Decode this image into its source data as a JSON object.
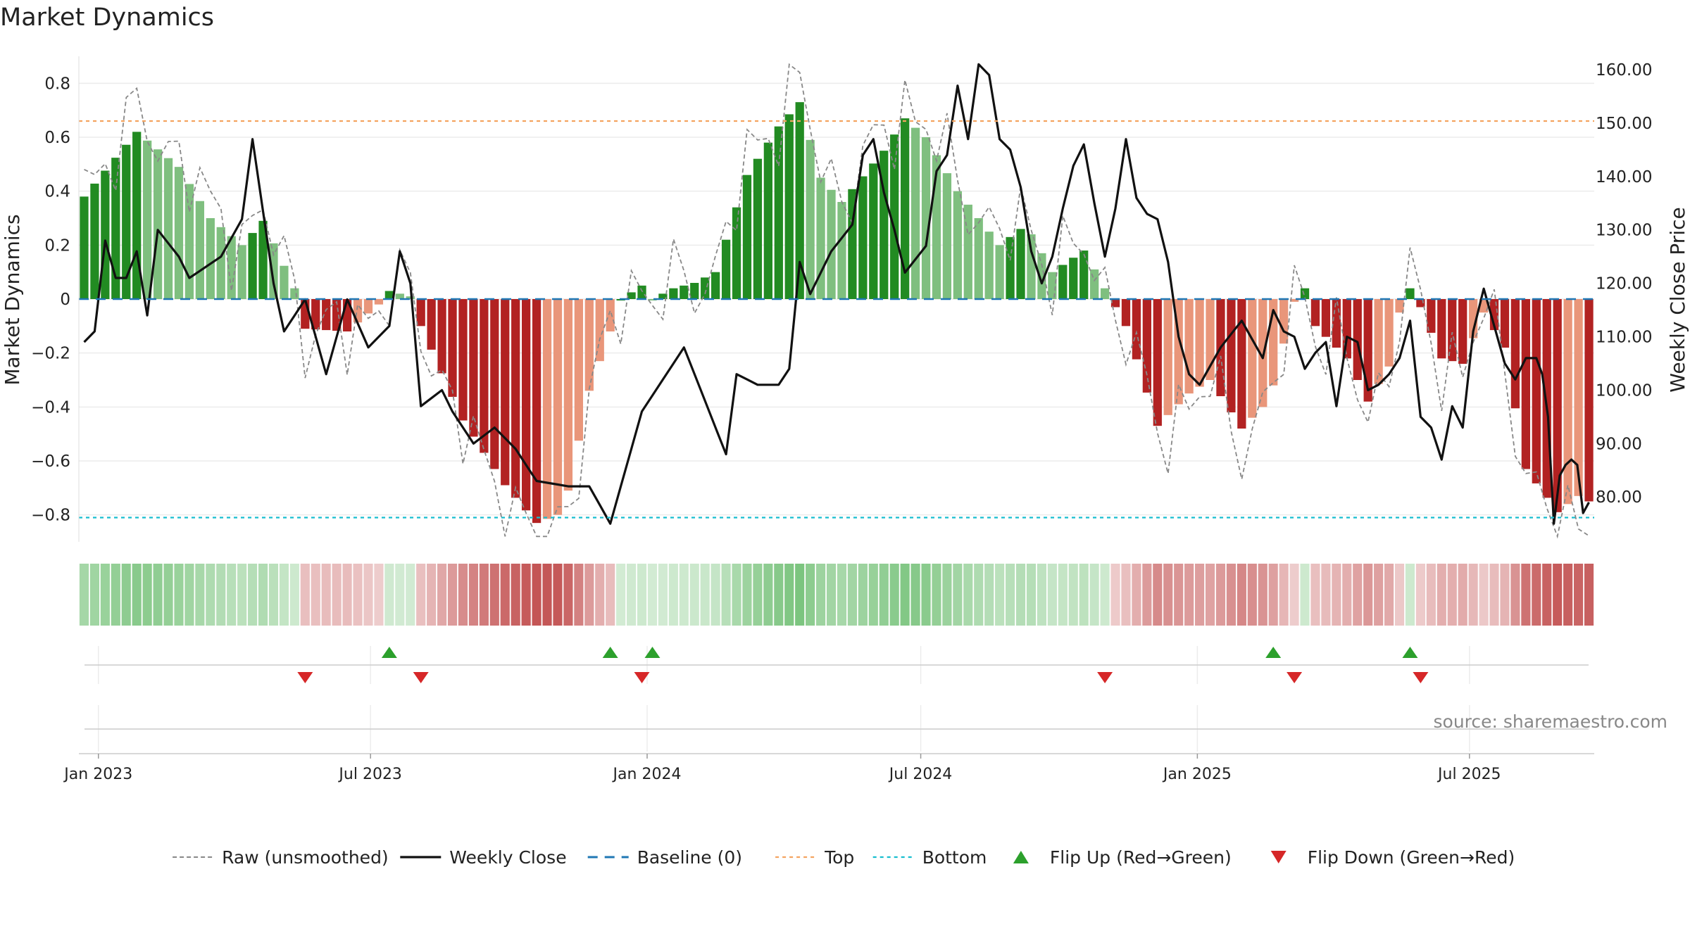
{
  "chart_data": {
    "type": "bar",
    "title": "Market Dynamics",
    "ylabel": "Market Dynamics",
    "y2label": "Weekly Close Price",
    "ylim": [
      -0.9,
      0.9
    ],
    "y2lim": [
      71.6,
      162.5
    ],
    "top_level": 0.66,
    "bottom_level": -0.81,
    "baseline_level": 0,
    "yticks": [
      0.8,
      0.6,
      0.4,
      0.2,
      0,
      -0.2,
      -0.4,
      -0.6,
      -0.8
    ],
    "yticklabels": [
      "0.8",
      "0.6",
      "0.4",
      "0.2",
      "0",
      "−0.2",
      "−0.4",
      "−0.6",
      "−0.8"
    ],
    "y2ticks": [
      160,
      150,
      140,
      130,
      120,
      110,
      100,
      90,
      80
    ],
    "y2ticklabels": [
      "160.00",
      "150.00",
      "140.00",
      "130.00",
      "120.00",
      "110.00",
      "100.00",
      "90.00",
      "80.00"
    ],
    "xticks": [
      "2023-01-01",
      "2023-07-01",
      "2024-01-01",
      "2024-07-01",
      "2025-01-01",
      "2025-07-01"
    ],
    "xticklabels": [
      "Jan 2023",
      "Jul 2023",
      "Jan 2024",
      "Jul 2024",
      "Jan 2025",
      "Jul 2025"
    ],
    "start_date": "2022-12-19",
    "weeks": 144,
    "legend_position": "bottom",
    "grid": true,
    "source": "source: sharemaestro.com",
    "dynamics_knots": [
      [
        0,
        0.38
      ],
      [
        5,
        0.62
      ],
      [
        9,
        0.49
      ],
      [
        12,
        0.3
      ],
      [
        15,
        0.2
      ],
      [
        17,
        0.29
      ],
      [
        20,
        0.04
      ],
      [
        21,
        -0.11
      ],
      [
        25,
        -0.12
      ],
      [
        28,
        -0.02
      ],
      [
        29,
        0.03
      ],
      [
        31,
        0.01
      ],
      [
        32,
        -0.1
      ],
      [
        36,
        -0.45
      ],
      [
        40,
        -0.69
      ],
      [
        43,
        -0.83
      ],
      [
        45,
        -0.8
      ],
      [
        46,
        -0.71
      ],
      [
        48,
        -0.34
      ],
      [
        50,
        -0.12
      ],
      [
        51,
        0.0
      ],
      [
        53,
        0.05
      ],
      [
        54,
        0.0
      ],
      [
        56,
        0.04
      ],
      [
        58,
        0.06
      ],
      [
        60,
        0.1
      ],
      [
        63,
        0.46
      ],
      [
        66,
        0.64
      ],
      [
        68,
        0.73
      ],
      [
        70,
        0.45
      ],
      [
        72,
        0.36
      ],
      [
        76,
        0.55
      ],
      [
        78,
        0.67
      ],
      [
        80,
        0.6
      ],
      [
        83,
        0.4
      ],
      [
        87,
        0.2
      ],
      [
        89,
        0.26
      ],
      [
        90,
        0.24
      ],
      [
        92,
        0.1
      ],
      [
        95,
        0.18
      ],
      [
        97,
        0.04
      ],
      [
        99,
        -0.1
      ],
      [
        102,
        -0.47
      ],
      [
        105,
        -0.35
      ],
      [
        107,
        -0.3
      ],
      [
        110,
        -0.48
      ],
      [
        112,
        -0.4
      ],
      [
        113,
        -0.32
      ],
      [
        115,
        -0.01
      ],
      [
        116,
        0.04
      ],
      [
        117,
        -0.1
      ],
      [
        120,
        -0.22
      ],
      [
        122,
        -0.38
      ],
      [
        124,
        -0.25
      ],
      [
        125,
        -0.05
      ],
      [
        126,
        0.04
      ],
      [
        127,
        -0.03
      ],
      [
        129,
        -0.22
      ],
      [
        131,
        -0.24
      ],
      [
        133,
        -0.05
      ],
      [
        135,
        -0.18
      ],
      [
        137,
        -0.63
      ],
      [
        140,
        -0.79
      ],
      [
        142,
        -0.73
      ],
      [
        143,
        -0.75
      ]
    ],
    "close_knots": [
      [
        0,
        109
      ],
      [
        1,
        111
      ],
      [
        2,
        128
      ],
      [
        3,
        121
      ],
      [
        4,
        121
      ],
      [
        5,
        126
      ],
      [
        6,
        114
      ],
      [
        7,
        130
      ],
      [
        9,
        125
      ],
      [
        10,
        121
      ],
      [
        13,
        125
      ],
      [
        15,
        132
      ],
      [
        16,
        147
      ],
      [
        18,
        120
      ],
      [
        19,
        111
      ],
      [
        21,
        117
      ],
      [
        23,
        103
      ],
      [
        25,
        117
      ],
      [
        27,
        108
      ],
      [
        29,
        112
      ],
      [
        30,
        126
      ],
      [
        31,
        120
      ],
      [
        32,
        97
      ],
      [
        34,
        100
      ],
      [
        35,
        96
      ],
      [
        37,
        90
      ],
      [
        39,
        93
      ],
      [
        41,
        89
      ],
      [
        43,
        83
      ],
      [
        46,
        82
      ],
      [
        48,
        82
      ],
      [
        50,
        75
      ],
      [
        53,
        96
      ],
      [
        55,
        102
      ],
      [
        57,
        108
      ],
      [
        59,
        98
      ],
      [
        61,
        88
      ],
      [
        62,
        103
      ],
      [
        64,
        101
      ],
      [
        66,
        101
      ],
      [
        67,
        104
      ],
      [
        68,
        124
      ],
      [
        69,
        118
      ],
      [
        71,
        126
      ],
      [
        73,
        131
      ],
      [
        74,
        144
      ],
      [
        75,
        147
      ],
      [
        76,
        137
      ],
      [
        77,
        130
      ],
      [
        78,
        122
      ],
      [
        80,
        127
      ],
      [
        81,
        141
      ],
      [
        82,
        144
      ],
      [
        83,
        157
      ],
      [
        84,
        147
      ],
      [
        85,
        161
      ],
      [
        86,
        159
      ],
      [
        87,
        147
      ],
      [
        88,
        145
      ],
      [
        89,
        138
      ],
      [
        90,
        126
      ],
      [
        91,
        120
      ],
      [
        92,
        125
      ],
      [
        93,
        134
      ],
      [
        94,
        142
      ],
      [
        95,
        146
      ],
      [
        96,
        135
      ],
      [
        97,
        125
      ],
      [
        98,
        134
      ],
      [
        99,
        147
      ],
      [
        100,
        136
      ],
      [
        101,
        133
      ],
      [
        102,
        132
      ],
      [
        103,
        124
      ],
      [
        104,
        110
      ],
      [
        105,
        103
      ],
      [
        106,
        101
      ],
      [
        108,
        108
      ],
      [
        110,
        113
      ],
      [
        112,
        106
      ],
      [
        113,
        115
      ],
      [
        114,
        111
      ],
      [
        115,
        110
      ],
      [
        116,
        104
      ],
      [
        117,
        107
      ],
      [
        118,
        109
      ],
      [
        119,
        97
      ],
      [
        120,
        110
      ],
      [
        121,
        109
      ],
      [
        122,
        100
      ],
      [
        123,
        101
      ],
      [
        124,
        103
      ],
      [
        125,
        106
      ],
      [
        126,
        113
      ],
      [
        127,
        95
      ],
      [
        128,
        93
      ],
      [
        129,
        87
      ],
      [
        130,
        97
      ],
      [
        131,
        93
      ],
      [
        132,
        111
      ],
      [
        133,
        119
      ],
      [
        134,
        112
      ],
      [
        135,
        105
      ],
      [
        136,
        102
      ],
      [
        137,
        106
      ],
      [
        138,
        102
      ],
      [
        139,
        104
      ],
      [
        140,
        106
      ],
      [
        141,
        104
      ],
      [
        142,
        100
      ],
      [
        143,
        77
      ]
    ],
    "close_tail": [
      [
        138,
        106
      ],
      [
        139,
        103
      ],
      [
        140,
        95
      ],
      [
        141,
        75
      ],
      [
        142,
        84
      ],
      [
        143,
        86
      ],
      [
        144,
        87
      ],
      [
        145,
        86
      ],
      [
        146,
        77
      ],
      [
        147,
        79
      ]
    ],
    "flip_up_weeks": [
      29,
      50,
      54,
      113,
      126
    ],
    "flip_down_weeks": [
      21,
      32,
      53,
      97,
      115,
      127
    ],
    "colors": {
      "green_strong": "#228B22",
      "green_soft": "#7FBF7F",
      "red_strong": "#B22222",
      "red_soft": "#E9967A",
      "raw_line": "#888888",
      "close_line": "#111111",
      "baseline": "#1F77B4",
      "top": "#F4A460",
      "bottom": "#17BECF",
      "flip_up": "#2CA02C",
      "flip_down": "#D62728"
    },
    "legend": [
      {
        "key": "raw",
        "label": "Raw (unsmoothed)"
      },
      {
        "key": "close",
        "label": "Weekly Close"
      },
      {
        "key": "baseline",
        "label": "Baseline (0)"
      },
      {
        "key": "top",
        "label": "Top"
      },
      {
        "key": "bottom",
        "label": "Bottom"
      },
      {
        "key": "flip_up",
        "label": "Flip Up (Red→Green)"
      },
      {
        "key": "flip_down",
        "label": "Flip Down (Green→Red)"
      }
    ]
  }
}
